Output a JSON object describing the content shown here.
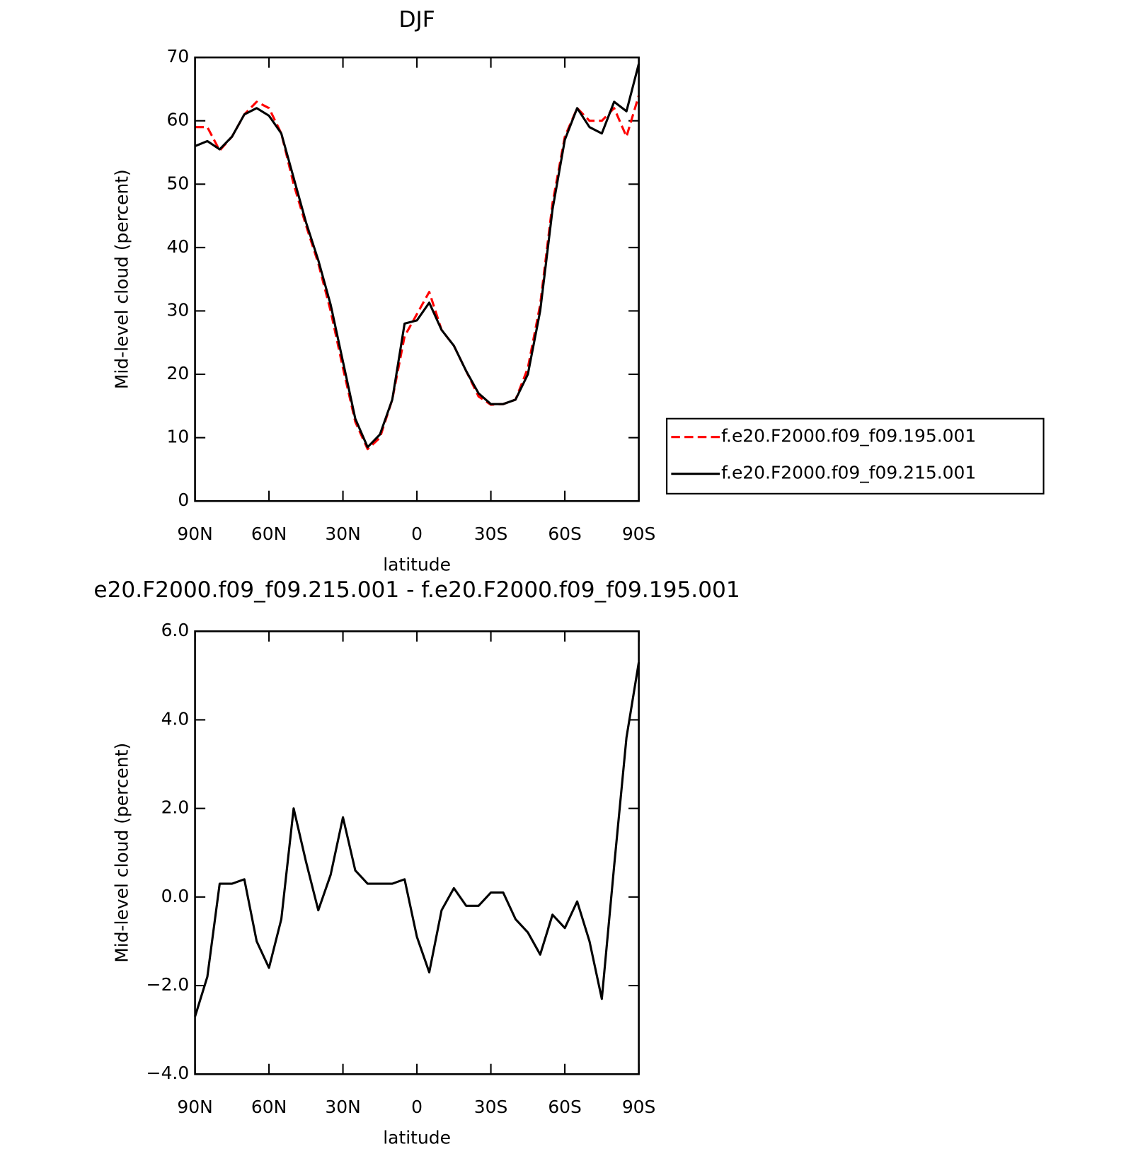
{
  "chart_data": [
    {
      "type": "line",
      "title": "DJF",
      "xlabel": "latitude",
      "ylabel": "Mid-level cloud (percent)",
      "x": [
        90,
        85,
        80,
        75,
        70,
        65,
        60,
        55,
        50,
        45,
        40,
        35,
        30,
        25,
        20,
        15,
        10,
        5,
        0,
        -5,
        -10,
        -15,
        -20,
        -25,
        -30,
        -35,
        -40,
        -45,
        -50,
        -55,
        -60,
        -65,
        -70,
        -75,
        -80,
        -85,
        -90
      ],
      "series": [
        {
          "name": "f.e20.F2000.f09_f09.195.001",
          "color": "#ff0000",
          "dash": true,
          "values": [
            59,
            59,
            55.3,
            57.5,
            61,
            63,
            62,
            58,
            50,
            43.5,
            37.5,
            30,
            21,
            12.5,
            8.2,
            10,
            16,
            26,
            29.5,
            33,
            27,
            24.5,
            20.5,
            16.5,
            15.2,
            15.3,
            16,
            21,
            31,
            47,
            57.5,
            62,
            60,
            60,
            62,
            57.5,
            64
          ]
        },
        {
          "name": "f.e20.F2000.f09_f09.215.001",
          "color": "#000000",
          "dash": false,
          "values": [
            56,
            56.8,
            55.5,
            57.5,
            61,
            62,
            60.8,
            58,
            51,
            44,
            38,
            31,
            22,
            13,
            8.5,
            10.5,
            16,
            28,
            28.5,
            31.3,
            27,
            24.5,
            20.5,
            17,
            15.3,
            15.3,
            16,
            20,
            30,
            46,
            57,
            62,
            59,
            58,
            63,
            61.5,
            69
          ]
        }
      ],
      "xlim": [
        90,
        -90
      ],
      "xticks": [
        {
          "value": 90,
          "label": "90N"
        },
        {
          "value": 60,
          "label": "60N"
        },
        {
          "value": 30,
          "label": "30N"
        },
        0,
        {
          "value": -30,
          "label": "30S"
        },
        {
          "value": -60,
          "label": "60S"
        },
        {
          "value": -90,
          "label": "90S"
        }
      ],
      "ylim": [
        0,
        70
      ],
      "yticks": [
        0,
        10,
        20,
        30,
        40,
        50,
        60,
        70
      ],
      "legend": "right"
    },
    {
      "type": "line",
      "title": "e20.F2000.f09_f09.215.001 - f.e20.F2000.f09_f09.195.001",
      "xlabel": "latitude",
      "ylabel": "Mid-level cloud (percent)",
      "x": [
        90,
        85,
        80,
        75,
        70,
        65,
        60,
        55,
        50,
        45,
        40,
        35,
        30,
        25,
        20,
        15,
        10,
        5,
        0,
        -5,
        -10,
        -15,
        -20,
        -25,
        -30,
        -35,
        -40,
        -45,
        -50,
        -55,
        -60,
        -65,
        -70,
        -75,
        -80,
        -85,
        -90
      ],
      "series": [
        {
          "color": "#000000",
          "dash": false,
          "values": [
            -2.7,
            -1.8,
            0.3,
            0.3,
            0.4,
            -1.0,
            -1.6,
            -0.5,
            2.0,
            0.8,
            -0.3,
            0.5,
            1.8,
            0.6,
            0.3,
            0.3,
            0.3,
            0.4,
            -0.9,
            -1.7,
            -0.3,
            0.2,
            -0.2,
            -0.2,
            0.1,
            0.1,
            -0.5,
            -0.8,
            -1.3,
            -0.4,
            -0.7,
            -0.1,
            -1.0,
            -2.3,
            0.7,
            3.6,
            5.3
          ]
        }
      ],
      "xlim": [
        90,
        -90
      ],
      "xticks": [
        {
          "value": 90,
          "label": "90N"
        },
        {
          "value": 60,
          "label": "60N"
        },
        {
          "value": 30,
          "label": "30N"
        },
        0,
        {
          "value": -30,
          "label": "30S"
        },
        {
          "value": -60,
          "label": "60S"
        },
        {
          "value": -90,
          "label": "90S"
        }
      ],
      "ylim": [
        -4,
        6
      ],
      "yticks": [
        {
          "value": -4,
          "label": "−4.0"
        },
        {
          "value": -2,
          "label": "−2.0"
        },
        {
          "value": 0,
          "label": "0.0"
        },
        {
          "value": 2,
          "label": "2.0"
        },
        {
          "value": 4,
          "label": "4.0"
        },
        {
          "value": 6,
          "label": "6.0"
        }
      ]
    }
  ]
}
